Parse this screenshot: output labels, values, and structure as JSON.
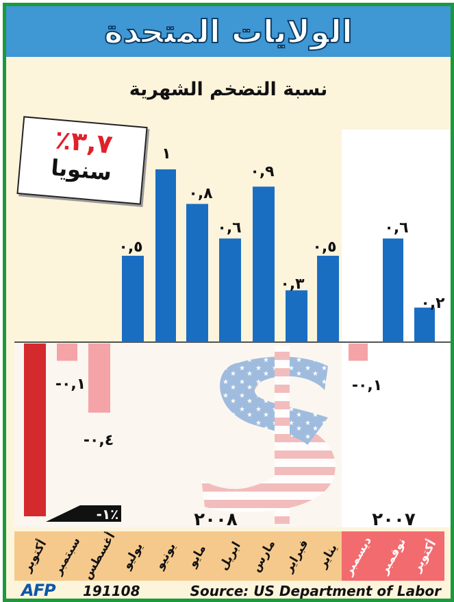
{
  "title": "الولايات المتحدة",
  "subtitle": "نسبة التضخم الشهرية",
  "annual": {
    "value": "٣,٧٪",
    "label": "سنويا"
  },
  "colors": {
    "positive": "#1a6ec2",
    "negative_2008": "#f4a3a6",
    "october_bar": "#d42a2e",
    "band_2008": "#f5c98c",
    "band_2007": "#f26b6e",
    "frame": "#1a9a3a",
    "title_band": "#3f97d4"
  },
  "chart_data": {
    "type": "bar",
    "categories": [
      "تشرين الأول",
      "تشرين الثاني",
      "كانون الأول",
      "كانون الثاني",
      "شباط",
      "آذار",
      "نيسان",
      "أيار",
      "حزيران",
      "تموز",
      "آب",
      "أيلول",
      "تشرين الأول"
    ],
    "category_labels_ar": [
      "أكتوبر",
      "نوفمبر",
      "ديسمبر",
      "يناير",
      "فبراير",
      "مارس",
      "ابريل",
      "مايو",
      "يونيو",
      "يوليو",
      "أغسطس",
      "سبتمبر",
      "أكتوبر"
    ],
    "years": [
      {
        "label": "٢٠٠٧",
        "months": [
          "أكتوبر",
          "نوفمبر",
          "ديسمبر"
        ]
      },
      {
        "label": "٢٠٠٨",
        "months": [
          "يناير",
          "فبراير",
          "مارس",
          "ابريل",
          "مايو",
          "يونيو",
          "يوليو",
          "أغسطس",
          "سبتمبر",
          "أكتوبر"
        ]
      }
    ],
    "values": [
      0.2,
      0.6,
      -0.1,
      0.5,
      0.3,
      0.9,
      0.6,
      0.8,
      1.0,
      0.5,
      -0.4,
      -0.1,
      -1.0
    ],
    "value_labels": [
      "٠,٢",
      "٠,٦",
      "-٠,١",
      "٠,٥",
      "٠,٣",
      "٠,٩",
      "٠,٦",
      "٠,٨",
      "١",
      "٠,٥",
      "-٠,٤",
      "-٠,١",
      "-١٪"
    ],
    "ylim": [
      -1.0,
      1.0
    ]
  },
  "footer": {
    "logo": "AFP",
    "code": "191108",
    "source": "Source: US Department of Labor"
  }
}
